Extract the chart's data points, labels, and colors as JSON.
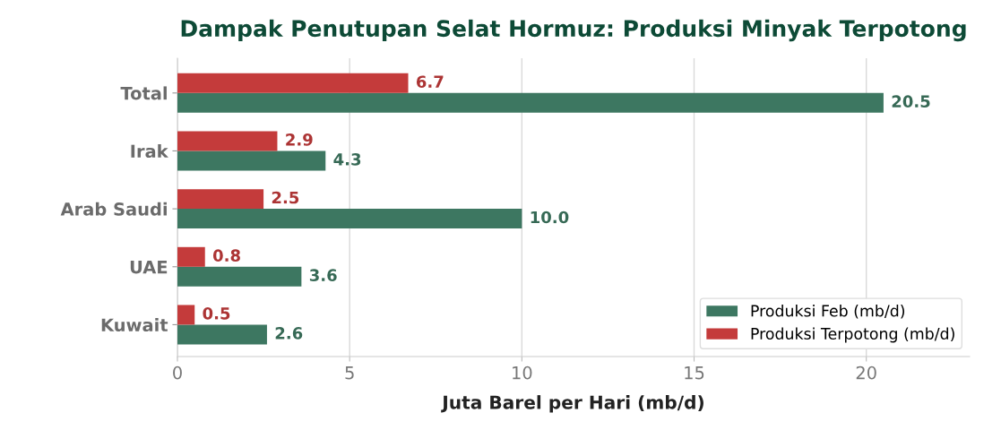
{
  "chart_data": {
    "type": "bar",
    "orientation": "horizontal",
    "title": "Dampak Penutupan Selat Hormuz: Produksi Minyak Terpotong",
    "xlabel": "Juta Barel per Hari (mb/d)",
    "categories": [
      "Total",
      "Irak",
      "Arab Saudi",
      "UAE",
      "Kuwait"
    ],
    "series": [
      {
        "name": "Produksi Feb (mb/d)",
        "color": "#3d7761",
        "values": [
          20.5,
          4.3,
          10.0,
          3.6,
          2.6
        ],
        "value_labels": [
          "20.5",
          "4.3",
          "10.0",
          "3.6",
          "2.6"
        ]
      },
      {
        "name": "Produksi Terpotong (mb/d)",
        "color": "#c43b3b",
        "values": [
          6.7,
          2.9,
          2.5,
          0.8,
          0.5
        ],
        "value_labels": [
          "6.7",
          "2.9",
          "2.5",
          "0.8",
          "0.5"
        ]
      }
    ],
    "xlim": [
      0,
      23
    ],
    "xticks": [
      0,
      5,
      10,
      15,
      20
    ],
    "grid": "x",
    "legend": "bottom right"
  }
}
